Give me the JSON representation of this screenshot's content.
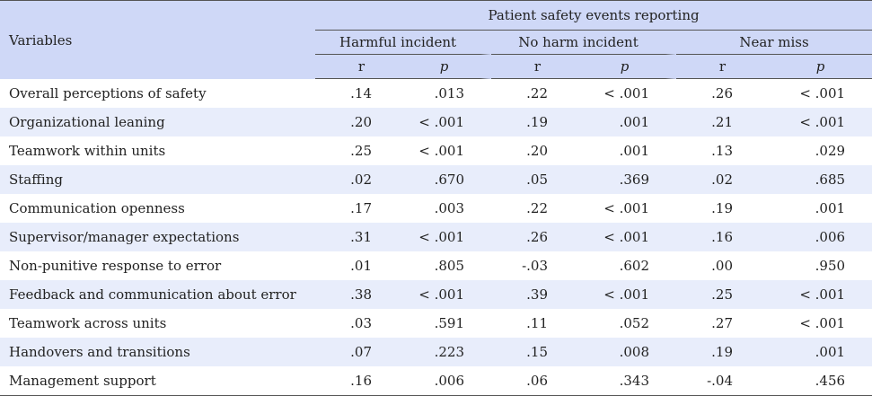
{
  "header": {
    "variables_label": "Variables",
    "group_label": "Patient safety events reporting",
    "subgroups": [
      "Harmful incident",
      "No harm incident",
      "Near miss"
    ],
    "stat_r": "r",
    "stat_p": "p"
  },
  "rows": [
    {
      "label": "Overall perceptions of safety",
      "v": [
        ".14",
        ".013",
        ".22",
        "< .001",
        ".26",
        "< .001"
      ]
    },
    {
      "label": "Organizational leaning",
      "v": [
        ".20",
        "< .001",
        ".19",
        ".001",
        ".21",
        "< .001"
      ]
    },
    {
      "label": "Teamwork within units",
      "v": [
        ".25",
        "< .001",
        ".20",
        ".001",
        ".13",
        ".029"
      ]
    },
    {
      "label": "Staffing",
      "v": [
        ".02",
        ".670",
        ".05",
        ".369",
        ".02",
        ".685"
      ]
    },
    {
      "label": "Communication openness",
      "v": [
        ".17",
        ".003",
        ".22",
        "< .001",
        ".19",
        ".001"
      ]
    },
    {
      "label": "Supervisor/manager expectations",
      "v": [
        ".31",
        "< .001",
        ".26",
        "< .001",
        ".16",
        ".006"
      ]
    },
    {
      "label": "Non-punitive response to error",
      "v": [
        ".01",
        ".805",
        "-.03",
        ".602",
        ".00",
        ".950"
      ]
    },
    {
      "label": "Feedback and communication about error",
      "v": [
        ".38",
        "< .001",
        ".39",
        "< .001",
        ".25",
        "< .001"
      ]
    },
    {
      "label": "Teamwork across units",
      "v": [
        ".03",
        ".591",
        ".11",
        ".052",
        ".27",
        "< .001"
      ]
    },
    {
      "label": "Handovers and transitions",
      "v": [
        ".07",
        ".223",
        ".15",
        ".008",
        ".19",
        ".001"
      ]
    },
    {
      "label": "Management support",
      "v": [
        ".16",
        ".006",
        ".06",
        ".343",
        "-.04",
        ".456"
      ]
    }
  ]
}
